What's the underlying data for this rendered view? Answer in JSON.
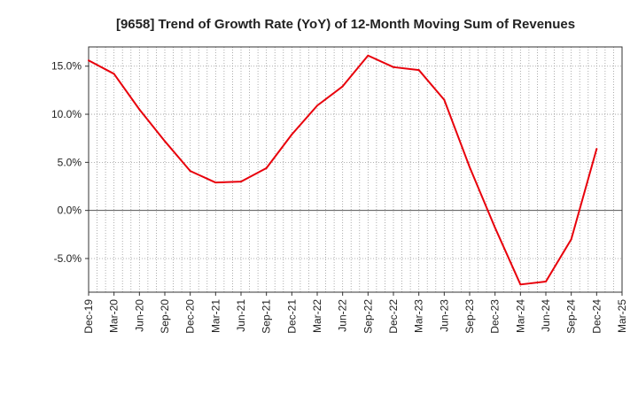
{
  "chart_data": {
    "type": "line",
    "title": "[9658]  Trend of Growth Rate (YoY) of 12-Month Moving Sum of Revenues",
    "xlabel": "",
    "ylabel": "",
    "x": [
      "Dec-19",
      "Jan-20",
      "Feb-20",
      "Mar-20",
      "Apr-20",
      "May-20",
      "Jun-20",
      "Jul-20",
      "Aug-20",
      "Sep-20",
      "Oct-20",
      "Nov-20",
      "Dec-20",
      "Jan-21",
      "Feb-21",
      "Mar-21",
      "Apr-21",
      "May-21",
      "Jun-21",
      "Jul-21",
      "Aug-21",
      "Sep-21",
      "Oct-21",
      "Nov-21",
      "Dec-21",
      "Jan-22",
      "Feb-22",
      "Mar-22",
      "Apr-22",
      "May-22",
      "Jun-22",
      "Jul-22",
      "Aug-22",
      "Sep-22",
      "Oct-22",
      "Nov-22",
      "Dec-22",
      "Jan-23",
      "Feb-23",
      "Mar-23",
      "Apr-23",
      "May-23",
      "Jun-23",
      "Jul-23",
      "Aug-23",
      "Sep-23",
      "Oct-23",
      "Nov-23",
      "Dec-23",
      "Jan-24",
      "Feb-24",
      "Mar-24",
      "Apr-24",
      "May-24",
      "Jun-24",
      "Jul-24",
      "Aug-24",
      "Sep-24",
      "Oct-24",
      "Nov-24",
      "Dec-24",
      "Jan-25",
      "Feb-25",
      "Mar-25"
    ],
    "tick_labels": [
      "Dec-19",
      "Mar-20",
      "Jun-20",
      "Sep-20",
      "Dec-20",
      "Mar-21",
      "Jun-21",
      "Sep-21",
      "Dec-21",
      "Mar-22",
      "Jun-22",
      "Sep-22",
      "Dec-22",
      "Mar-23",
      "Jun-23",
      "Sep-23",
      "Dec-23",
      "Mar-24",
      "Jun-24",
      "Sep-24",
      "Dec-24",
      "Mar-25"
    ],
    "series": [
      {
        "name": "",
        "color": "#e8000b",
        "points": [
          [
            "Dec-19",
            15.6
          ],
          [
            "Mar-20",
            14.2
          ],
          [
            "Jun-20",
            10.5
          ],
          [
            "Sep-20",
            7.2
          ],
          [
            "Dec-20",
            4.1
          ],
          [
            "Mar-21",
            2.9
          ],
          [
            "Jun-21",
            3.0
          ],
          [
            "Sep-21",
            4.4
          ],
          [
            "Dec-21",
            7.9
          ],
          [
            "Mar-22",
            10.9
          ],
          [
            "Jun-22",
            12.9
          ],
          [
            "Sep-22",
            16.1
          ],
          [
            "Dec-22",
            14.9
          ],
          [
            "Mar-23",
            14.6
          ],
          [
            "Jun-23",
            11.5
          ],
          [
            "Sep-23",
            4.5
          ],
          [
            "Dec-23",
            -1.8
          ],
          [
            "Mar-24",
            -7.7
          ],
          [
            "Jun-24",
            -7.4
          ],
          [
            "Sep-24",
            -3.0
          ],
          [
            "Dec-24",
            6.4
          ]
        ]
      }
    ],
    "y_ticks": [
      "15.0%",
      "10.0%",
      "5.0%",
      "0.0%",
      "-5.0%"
    ],
    "y_tick_values": [
      15,
      10,
      5,
      0,
      -5
    ],
    "ylim": [
      -8.5,
      17.0
    ],
    "grid": true,
    "legend": "none"
  }
}
